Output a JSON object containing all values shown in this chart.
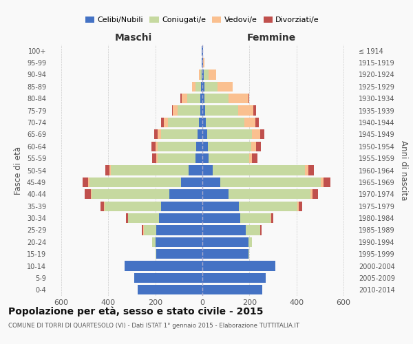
{
  "age_groups": [
    "0-4",
    "5-9",
    "10-14",
    "15-19",
    "20-24",
    "25-29",
    "30-34",
    "35-39",
    "40-44",
    "45-49",
    "50-54",
    "55-59",
    "60-64",
    "65-69",
    "70-74",
    "75-79",
    "80-84",
    "85-89",
    "90-94",
    "95-99",
    "100+"
  ],
  "birth_years": [
    "2010-2014",
    "2005-2009",
    "2000-2004",
    "1995-1999",
    "1990-1994",
    "1985-1989",
    "1980-1984",
    "1975-1979",
    "1970-1974",
    "1965-1969",
    "1960-1964",
    "1955-1959",
    "1950-1954",
    "1945-1949",
    "1940-1944",
    "1935-1939",
    "1930-1934",
    "1925-1929",
    "1920-1924",
    "1915-1919",
    "≤ 1914"
  ],
  "male": {
    "celibe": [
      275,
      290,
      330,
      195,
      200,
      195,
      185,
      175,
      140,
      90,
      60,
      30,
      25,
      20,
      15,
      10,
      8,
      5,
      4,
      2,
      2
    ],
    "coniugato": [
      0,
      0,
      0,
      5,
      15,
      55,
      130,
      240,
      330,
      390,
      330,
      160,
      165,
      155,
      130,
      95,
      55,
      25,
      5,
      0,
      0
    ],
    "vedovo": [
      0,
      0,
      0,
      0,
      0,
      2,
      2,
      3,
      5,
      5,
      5,
      5,
      10,
      15,
      20,
      20,
      25,
      15,
      5,
      1,
      0
    ],
    "divorziato": [
      0,
      0,
      0,
      0,
      0,
      5,
      8,
      15,
      25,
      25,
      18,
      18,
      18,
      15,
      10,
      5,
      5,
      0,
      0,
      0,
      0
    ]
  },
  "female": {
    "nubile": [
      255,
      270,
      310,
      195,
      195,
      185,
      160,
      155,
      110,
      75,
      45,
      25,
      22,
      20,
      15,
      12,
      10,
      8,
      5,
      2,
      2
    ],
    "coniugata": [
      0,
      0,
      0,
      5,
      15,
      60,
      130,
      250,
      350,
      430,
      390,
      175,
      185,
      190,
      165,
      140,
      100,
      55,
      20,
      2,
      0
    ],
    "vedova": [
      0,
      0,
      0,
      0,
      0,
      2,
      2,
      5,
      8,
      10,
      15,
      12,
      20,
      35,
      45,
      65,
      85,
      65,
      35,
      5,
      0
    ],
    "divorziata": [
      0,
      0,
      0,
      0,
      0,
      5,
      10,
      15,
      25,
      30,
      25,
      22,
      22,
      18,
      15,
      10,
      5,
      0,
      0,
      0,
      0
    ]
  },
  "colors": {
    "celibe": "#4472C4",
    "coniugato": "#C6D9A0",
    "vedovo": "#FAC090",
    "divorziato": "#C0504D"
  },
  "xlim": 650,
  "title": "Popolazione per età, sesso e stato civile - 2015",
  "subtitle": "COMUNE DI TORRI DI QUARTESOLO (VI) - Dati ISTAT 1° gennaio 2015 - Elaborazione TUTTITALIA.IT",
  "ylabel": "Fasce di età",
  "ylabel2": "Anni di nascita",
  "background_color": "#f9f9f9",
  "grid_color": "#cccccc"
}
